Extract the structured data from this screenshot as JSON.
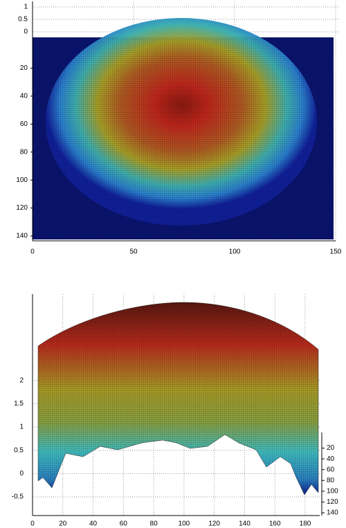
{
  "chart_data": [
    {
      "type": "surface",
      "colormap": "jet",
      "grid": true,
      "xlim": [
        0,
        150
      ],
      "xticks": [
        0,
        50,
        100,
        150
      ],
      "ylim": [
        0,
        140
      ],
      "yticks": [
        20,
        40,
        60,
        80,
        100,
        120,
        140
      ],
      "zlim": [
        0,
        1
      ],
      "zticks": [
        0,
        0.5,
        1
      ]
    },
    {
      "type": "surface",
      "colormap": "jet",
      "grid": true,
      "xlim": [
        0,
        180
      ],
      "xticks": [
        0,
        20,
        40,
        60,
        80,
        100,
        120,
        140,
        160,
        180
      ],
      "ylim": [
        0,
        140
      ],
      "yticks": [
        20,
        40,
        60,
        80,
        100,
        120,
        140
      ],
      "zlim": [
        -0.5,
        2.5
      ],
      "zticks": [
        -0.5,
        0,
        0.5,
        1,
        1.5,
        2
      ]
    }
  ]
}
